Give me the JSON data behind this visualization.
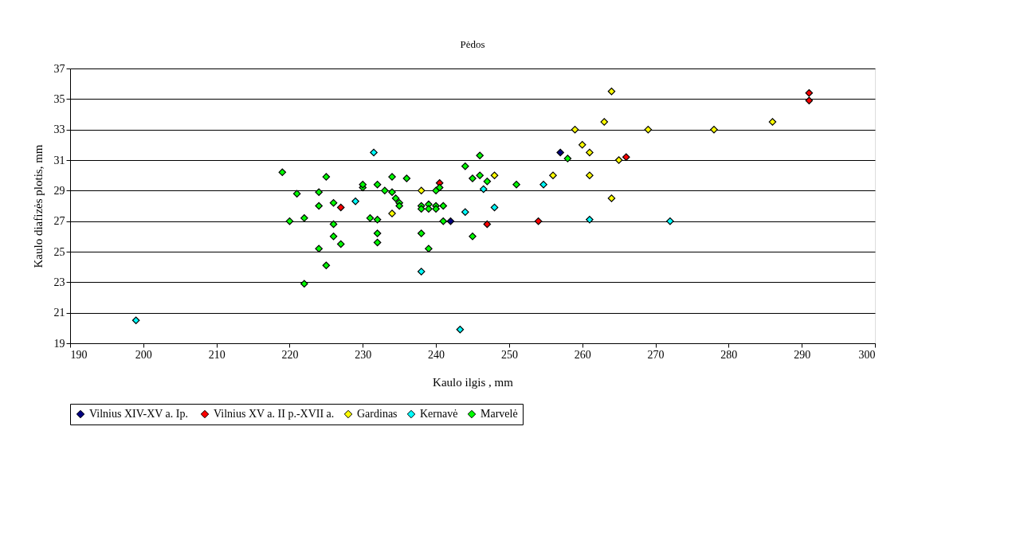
{
  "chart_data": {
    "type": "scatter",
    "title": "Pėdos",
    "xlabel": "Kaulo ilgis , mm",
    "ylabel": "Kaulo diafizės plotis, mm",
    "xlim": [
      190,
      300
    ],
    "xticks": [
      190,
      200,
      210,
      220,
      230,
      240,
      250,
      260,
      270,
      280,
      290,
      300
    ],
    "ylim": [
      19,
      37
    ],
    "yticks": [
      19,
      21,
      23,
      25,
      27,
      29,
      31,
      33,
      35,
      37
    ],
    "grid": "y",
    "legend": "bottom",
    "marker": "diamond",
    "series": [
      {
        "name": "Vilnius  XIV-XV a. Ip.",
        "color": "#000080",
        "x": [
          242,
          257
        ],
        "values": [
          27.0,
          31.5
        ]
      },
      {
        "name": "Vilnius XV a. II p.-XVII a.",
        "color": "#ff0000",
        "x": [
          227,
          240.5,
          247,
          254,
          266,
          291,
          291
        ],
        "values": [
          27.9,
          29.5,
          26.8,
          27.0,
          31.2,
          35.4,
          34.9
        ]
      },
      {
        "name": "Gardinas",
        "color": "#ffff00",
        "x": [
          238,
          234,
          248,
          256,
          259,
          260,
          261,
          261,
          263,
          264,
          264,
          265,
          269,
          278,
          286
        ],
        "values": [
          29.0,
          27.5,
          30.0,
          30.0,
          33.0,
          32.0,
          31.5,
          30.0,
          33.5,
          35.5,
          28.5,
          31.0,
          33.0,
          33.0,
          33.5
        ]
      },
      {
        "name": "Kernavė",
        "color": "#00ffff",
        "x": [
          199,
          229,
          231.5,
          238,
          243.3,
          244,
          246.5,
          248,
          254.7,
          261,
          272
        ],
        "values": [
          20.5,
          28.3,
          31.5,
          23.7,
          19.9,
          27.6,
          29.1,
          27.9,
          29.4,
          27.1,
          27.0
        ]
      },
      {
        "name": "Marvelė",
        "color": "#00ff00",
        "x": [
          219,
          220,
          221,
          222,
          222,
          224,
          224,
          224,
          225,
          225,
          226,
          226,
          226,
          227,
          230,
          230,
          231,
          232,
          232,
          232,
          232,
          233,
          234,
          234,
          234.5,
          235,
          235,
          236,
          238,
          238,
          238,
          239,
          239,
          239,
          240,
          240,
          240,
          240.5,
          241,
          241,
          244,
          245,
          245,
          246,
          246,
          247,
          251,
          258
        ],
        "values": [
          30.2,
          27.0,
          28.8,
          27.2,
          22.9,
          28.9,
          28.0,
          25.2,
          29.9,
          24.1,
          28.2,
          26.8,
          26.0,
          25.5,
          29.2,
          29.4,
          27.2,
          29.4,
          27.1,
          26.2,
          25.6,
          29.0,
          29.9,
          28.9,
          28.5,
          28.2,
          28.0,
          29.8,
          28.0,
          27.8,
          26.2,
          28.1,
          27.8,
          25.2,
          28.0,
          27.8,
          29.0,
          29.2,
          28.0,
          27.0,
          30.6,
          29.8,
          26.0,
          30.0,
          31.3,
          29.6,
          29.4,
          31.1
        ]
      }
    ]
  }
}
